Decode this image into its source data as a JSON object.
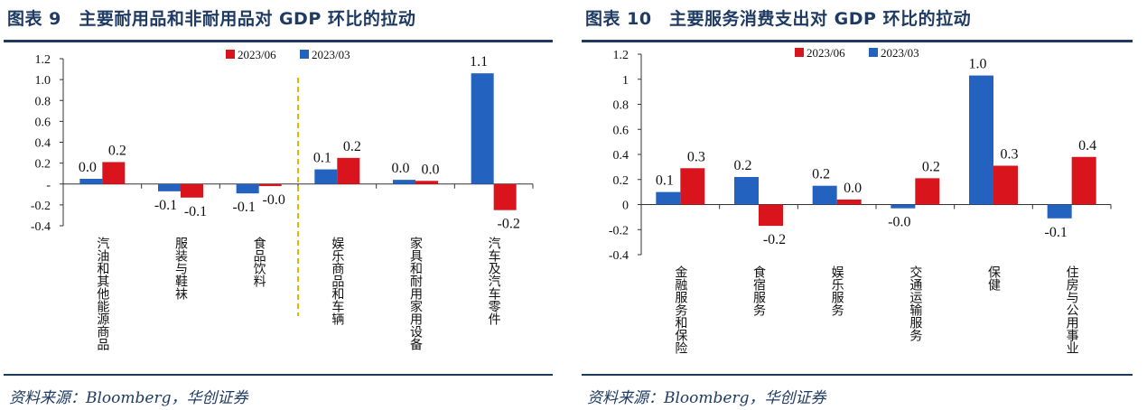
{
  "panels": [
    {
      "title": "图表 9　主要耐用品和非耐用品对 GDP 环比的拉动",
      "source": "资料来源：Bloomberg，华创证券"
    },
    {
      "title": "图表 10　主要服务消费支出对 GDP 环比的拉动",
      "source": "资料来源：Bloomberg，华创证券"
    }
  ],
  "colors": {
    "red": "#d9141c",
    "blue": "#2462bf",
    "divider": "#e8b400",
    "title": "#1f3b63"
  },
  "chart_data": [
    {
      "type": "bar",
      "title": "主要耐用品和非耐用品对 GDP 环比的拉动",
      "categories": [
        "汽油和其他能源商品",
        "服装与鞋袜",
        "食品饮料",
        "娱乐商品和车辆",
        "家具和耐用家用设备",
        "汽车及汽车零件"
      ],
      "series": [
        {
          "name": "2023/03",
          "color": "#2462bf",
          "values": [
            0.05,
            -0.07,
            -0.09,
            0.14,
            0.04,
            1.06
          ],
          "labels": [
            "0.0",
            "-0.1",
            "-0.1",
            "0.1",
            "0.0",
            "1.1"
          ]
        },
        {
          "name": "2023/06",
          "color": "#d9141c",
          "values": [
            0.21,
            -0.13,
            -0.02,
            0.25,
            0.03,
            -0.25
          ],
          "labels": [
            "0.2",
            "-0.1",
            "-0.0",
            "0.2",
            "0.0",
            "-0.2"
          ]
        }
      ],
      "legend_order": [
        "2023/06",
        "2023/03"
      ],
      "legend_position": "top",
      "ylim": [
        -0.4,
        1.2
      ],
      "yticks": [
        1.2,
        1.0,
        0.8,
        0.6,
        0.4,
        0.2,
        0,
        -0.2,
        -0.4
      ],
      "ytick_labels": [
        "1.2",
        "1.0",
        "0.8",
        "0.6",
        "0.4",
        "0.2",
        "-",
        "-0.2",
        "-0.4"
      ],
      "divider_after_category": 3,
      "xlabel": "",
      "ylabel": ""
    },
    {
      "type": "bar",
      "title": "主要服务消费支出对 GDP 环比的拉动",
      "categories": [
        "金融服务和保险",
        "食宿服务",
        "娱乐服务",
        "交通运输服务",
        "保健",
        "住房与公用事业"
      ],
      "series": [
        {
          "name": "2023/03",
          "color": "#2462bf",
          "values": [
            0.1,
            0.22,
            0.15,
            -0.03,
            1.03,
            -0.11
          ],
          "labels": [
            "0.1",
            "0.2",
            "0.2",
            "-0.0",
            "1.0",
            "-0.1"
          ]
        },
        {
          "name": "2023/06",
          "color": "#d9141c",
          "values": [
            0.29,
            -0.17,
            0.04,
            0.21,
            0.31,
            0.38
          ],
          "labels": [
            "0.3",
            "-0.2",
            "0.0",
            "0.2",
            "0.3",
            "0.4"
          ]
        }
      ],
      "legend_order": [
        "2023/06",
        "2023/03"
      ],
      "legend_position": "top",
      "ylim": [
        -0.4,
        1.2
      ],
      "yticks": [
        1.2,
        1,
        0.8,
        0.6,
        0.4,
        0.2,
        0,
        -0.2,
        -0.4
      ],
      "ytick_labels": [
        "1.2",
        "1",
        "0.8",
        "0.6",
        "0.4",
        "0.2",
        "0",
        "-0.2",
        "-0.4"
      ],
      "divider_after_category": null,
      "xlabel": "",
      "ylabel": ""
    }
  ]
}
